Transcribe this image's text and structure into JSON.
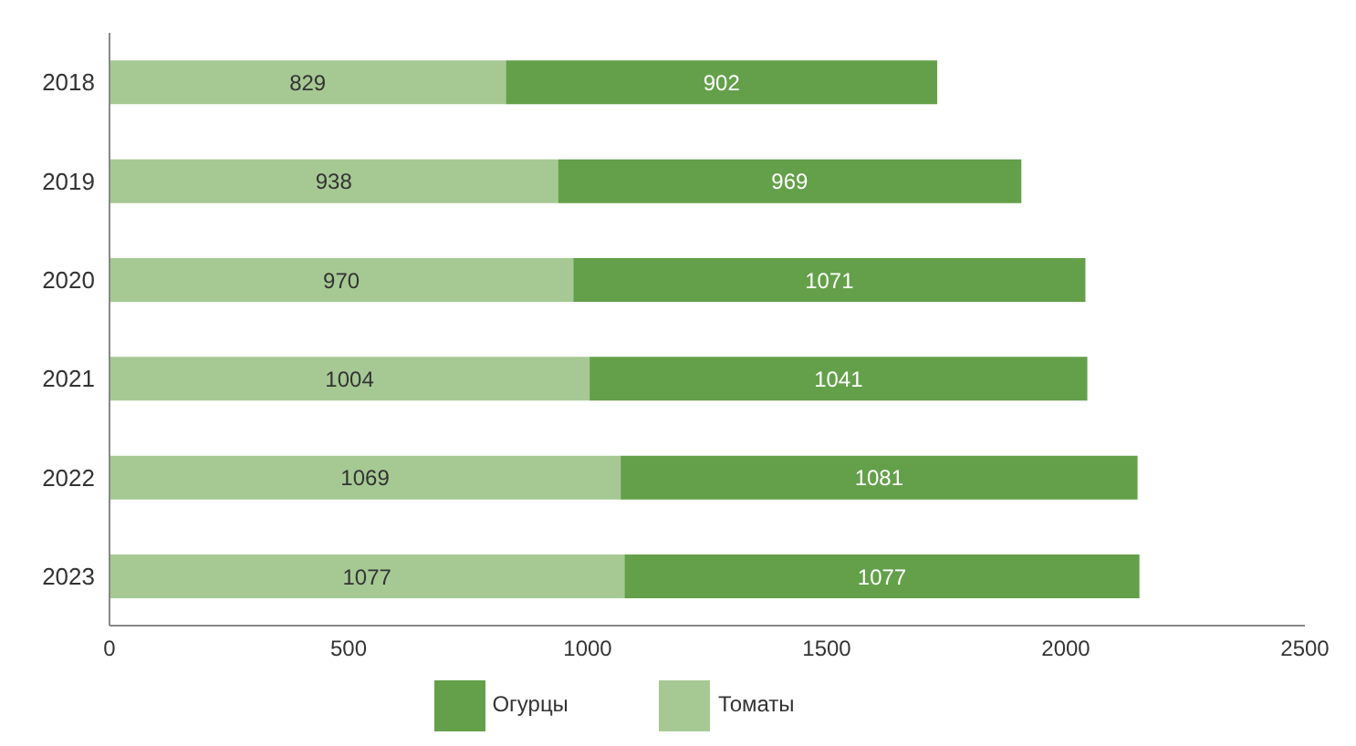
{
  "chart_data": {
    "type": "bar",
    "orientation": "horizontal",
    "stacked": true,
    "categories": [
      "2018",
      "2019",
      "2020",
      "2021",
      "2022",
      "2023"
    ],
    "series": [
      {
        "name": "Томаты",
        "color": "#a6c994",
        "values": [
          829,
          938,
          970,
          1004,
          1069,
          1077
        ]
      },
      {
        "name": "Огурцы",
        "color": "#64a04a",
        "values": [
          902,
          969,
          1071,
          1041,
          1081,
          1077
        ]
      }
    ],
    "xlim": [
      0,
      2500
    ],
    "xticks": [
      0,
      500,
      1000,
      1500,
      2000,
      2500
    ],
    "data_labels": true,
    "legend": "bottom",
    "grid": false
  }
}
